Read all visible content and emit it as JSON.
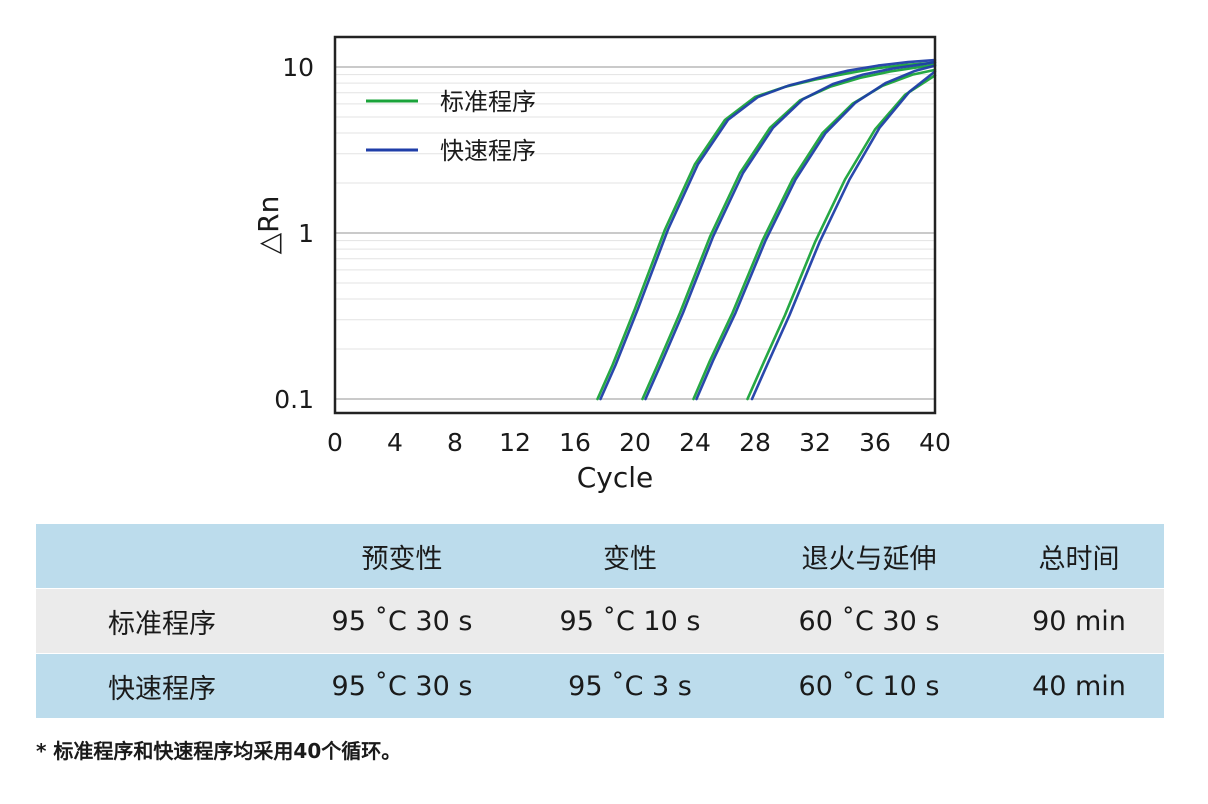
{
  "chart_data": {
    "type": "line",
    "xlabel": "Cycle",
    "ylabel": "△Rn",
    "x_ticks": [
      "0",
      "4",
      "8",
      "12",
      "16",
      "20",
      "24",
      "28",
      "32",
      "36",
      "40"
    ],
    "y_ticks": [
      "0.1",
      "1",
      "10"
    ],
    "xlim": [
      0,
      40
    ],
    "ylim": [
      0.1,
      12
    ],
    "y_scale": "log",
    "legend": [
      {
        "name": "标准程序",
        "color": "#1aa33a"
      },
      {
        "name": "快速程序",
        "color": "#1f3ea8"
      }
    ],
    "legend_position": "top-left",
    "grid": true,
    "series": [
      {
        "name": "标准程序",
        "color": "#1aa33a",
        "curves": [
          {
            "x": [
              17.5,
              18.5,
              20,
              22,
              24,
              26,
              28,
              30,
              32,
              34,
              36,
              38,
              40
            ],
            "y": [
              0.1,
              0.16,
              0.35,
              1.05,
              2.6,
              4.8,
              6.6,
              7.6,
              8.4,
              9.1,
              9.8,
              10.3,
              10.6
            ]
          },
          {
            "x": [
              20.5,
              21.5,
              23,
              25,
              27,
              29,
              31,
              33,
              35,
              37,
              39,
              40
            ],
            "y": [
              0.1,
              0.16,
              0.33,
              0.95,
              2.3,
              4.3,
              6.3,
              7.6,
              8.6,
              9.4,
              10.0,
              10.3
            ]
          },
          {
            "x": [
              23.9,
              25,
              26.5,
              28.5,
              30.5,
              32.5,
              34.5,
              36.5,
              38.5,
              40
            ],
            "y": [
              0.1,
              0.17,
              0.33,
              0.9,
              2.1,
              4.0,
              6.0,
              7.7,
              9.0,
              9.6
            ]
          },
          {
            "x": [
              27.5,
              28.5,
              30,
              32,
              34,
              36,
              38,
              40
            ],
            "y": [
              0.1,
              0.16,
              0.32,
              0.88,
              2.1,
              4.2,
              6.8,
              8.9
            ]
          }
        ]
      },
      {
        "name": "快速程序",
        "color": "#1f3ea8",
        "curves": [
          {
            "x": [
              17.7,
              18.7,
              20.2,
              22.2,
              24.2,
              26.2,
              28.2,
              30.2,
              32.2,
              34.2,
              36.2,
              38.2,
              40
            ],
            "y": [
              0.1,
              0.16,
              0.35,
              1.05,
              2.6,
              4.8,
              6.6,
              7.7,
              8.6,
              9.5,
              10.2,
              10.7,
              11.0
            ]
          },
          {
            "x": [
              20.7,
              21.7,
              23.2,
              25.2,
              27.2,
              29.2,
              31.2,
              33.2,
              35.2,
              37.2,
              39.2,
              40
            ],
            "y": [
              0.1,
              0.16,
              0.33,
              0.95,
              2.3,
              4.3,
              6.4,
              7.9,
              9.0,
              9.8,
              10.4,
              10.7
            ]
          },
          {
            "x": [
              24.1,
              25.2,
              26.7,
              28.7,
              30.7,
              32.7,
              34.7,
              36.7,
              38.7,
              40
            ],
            "y": [
              0.1,
              0.17,
              0.33,
              0.9,
              2.1,
              4.0,
              6.1,
              8.0,
              9.5,
              10.2
            ]
          },
          {
            "x": [
              27.8,
              28.8,
              30.3,
              32.3,
              34.3,
              36.3,
              38.3,
              40
            ],
            "y": [
              0.1,
              0.16,
              0.32,
              0.88,
              2.1,
              4.3,
              7.1,
              9.4
            ]
          }
        ]
      }
    ]
  },
  "table": {
    "headers": [
      "",
      "预变性",
      "变性",
      "退火与延伸",
      "总时间"
    ],
    "rows": [
      [
        "标准程序",
        "95 ˚C 30 s",
        "95 ˚C 10 s",
        "60 ˚C 30 s",
        "90 min"
      ],
      [
        "快速程序",
        "95 ˚C 30 s",
        "95 ˚C  3 s",
        "60 ˚C 10 s",
        "40 min"
      ]
    ]
  },
  "footnote": "* 标准程序和快速程序均采用40个循环。"
}
